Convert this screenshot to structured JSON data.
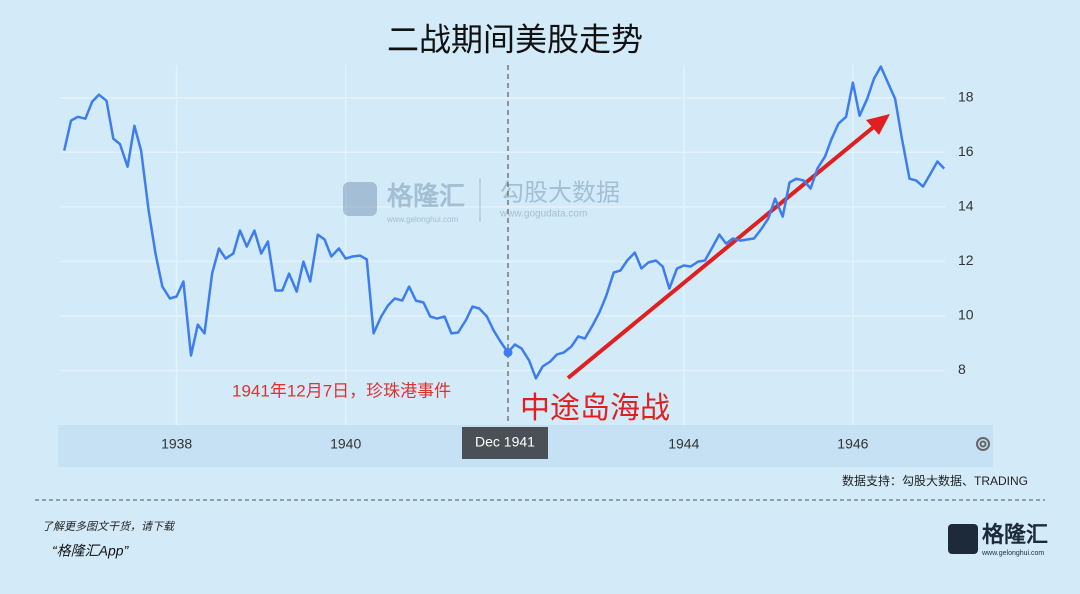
{
  "chart_data": {
    "type": "line",
    "title": "二战期间美股走势",
    "x": [
      1936.67,
      1936.75,
      1936.83,
      1936.92,
      1937.0,
      1937.08,
      1937.17,
      1937.25,
      1937.33,
      1937.42,
      1937.5,
      1937.58,
      1937.67,
      1937.75,
      1937.83,
      1937.92,
      1938.0,
      1938.08,
      1938.17,
      1938.25,
      1938.33,
      1938.42,
      1938.5,
      1938.58,
      1938.67,
      1938.75,
      1938.83,
      1938.92,
      1939.0,
      1939.08,
      1939.17,
      1939.25,
      1939.33,
      1939.42,
      1939.5,
      1939.58,
      1939.67,
      1939.75,
      1939.83,
      1939.92,
      1940.0,
      1940.08,
      1940.17,
      1940.25,
      1940.33,
      1940.42,
      1940.5,
      1940.58,
      1940.67,
      1940.75,
      1940.83,
      1940.92,
      1941.0,
      1941.08,
      1941.17,
      1941.25,
      1941.33,
      1941.42,
      1941.5,
      1941.58,
      1941.67,
      1941.75,
      1941.83,
      1941.92,
      1942.0,
      1942.08,
      1942.17,
      1942.25,
      1942.33,
      1942.42,
      1942.5,
      1942.58,
      1942.67,
      1942.75,
      1942.83,
      1942.92,
      1943.0,
      1943.08,
      1943.17,
      1943.25,
      1943.33,
      1943.42,
      1943.5,
      1943.58,
      1943.67,
      1943.75,
      1943.83,
      1943.92,
      1944.0,
      1944.08,
      1944.17,
      1944.25,
      1944.33,
      1944.42,
      1944.5,
      1944.58,
      1944.67,
      1944.75,
      1944.83,
      1944.92,
      1945.0,
      1945.08,
      1945.17,
      1945.25,
      1945.33,
      1945.42,
      1945.5,
      1945.58,
      1945.67,
      1945.75,
      1945.83,
      1945.92,
      1946.0,
      1946.08,
      1946.17,
      1946.25,
      1946.33,
      1946.42,
      1946.5,
      1946.58,
      1946.67,
      1946.75,
      1946.83,
      1946.92,
      1947.0,
      1947.08
    ],
    "series": [
      {
        "color": "#3d7df0",
        "values": [
          16.06,
          17.16,
          17.3,
          17.23,
          17.85,
          18.11,
          17.89,
          16.5,
          16.3,
          15.47,
          16.97,
          16.06,
          13.82,
          12.29,
          11.08,
          10.64,
          10.71,
          11.26,
          8.55,
          9.68,
          9.36,
          11.55,
          12.47,
          12.1,
          12.29,
          13.13,
          12.54,
          13.13,
          12.29,
          12.73,
          10.93,
          10.93,
          11.55,
          10.89,
          11.99,
          11.26,
          12.98,
          12.8,
          12.18,
          12.47,
          12.1,
          12.18,
          12.21,
          12.07,
          9.36,
          9.98,
          10.38,
          10.64,
          10.56,
          11.08,
          10.56,
          10.49,
          9.98,
          9.9,
          9.98,
          9.36,
          9.39,
          9.83,
          10.34,
          10.27,
          9.98,
          9.47,
          9.06,
          8.66,
          8.95,
          8.81,
          8.37,
          7.71,
          8.15,
          8.33,
          8.59,
          8.66,
          8.88,
          9.25,
          9.17,
          9.65,
          10.12,
          10.71,
          11.59,
          11.66,
          12.03,
          12.32,
          11.74,
          11.96,
          12.03,
          11.81,
          11.0,
          11.74,
          11.85,
          11.81,
          11.99,
          12.03,
          12.47,
          12.98,
          12.65,
          12.84,
          12.76,
          12.8,
          12.84,
          13.2,
          13.57,
          14.3,
          13.64,
          14.89,
          15.03,
          14.96,
          14.67,
          15.4,
          15.84,
          16.5,
          17.05,
          17.3,
          18.55,
          17.34,
          17.96,
          18.7,
          19.14,
          18.51,
          17.96,
          16.5,
          15.03,
          14.96,
          14.74,
          15.22,
          15.66,
          15.4
        ]
      }
    ],
    "xlim": [
      1936.62,
      1947.09
    ],
    "xticks": [
      1938,
      1940,
      1944,
      1946
    ],
    "ylim": [
      6,
      19.2
    ],
    "yticks": [
      8,
      10,
      12,
      14,
      16,
      18
    ],
    "grid": true,
    "crosshair": {
      "x": 1941.92,
      "label": "Dec 1941"
    },
    "annotations": [
      "1941年12月7日，珍珠港事件",
      "中途岛海战"
    ]
  },
  "watermark": {
    "brand": "格隆汇",
    "brand_url": "www.gelonghui.com",
    "partner": "勾股大数据",
    "partner_url": "www.gogudata.com"
  },
  "source": "数据支持：勾股大数据、TRADING",
  "footer": {
    "prompt": "了解更多图文干货，请下载",
    "app": "“格隆汇App”",
    "logo": "格隆汇",
    "logo_url": "www.gelonghui.com"
  }
}
